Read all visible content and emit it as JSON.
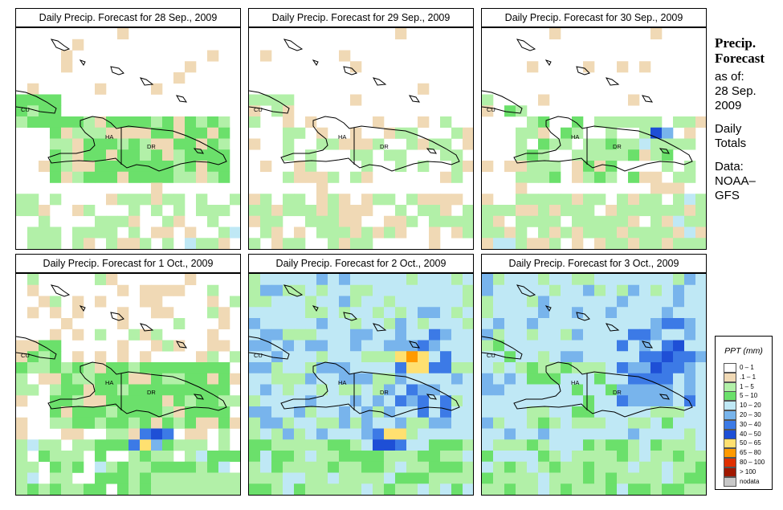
{
  "panels": [
    {
      "title": "Daily Precip. Forecast for  28 Sep., 2009",
      "day": "28 Sep., 2009"
    },
    {
      "title": "Daily Precip. Forecast for  29 Sep., 2009",
      "day": "29 Sep., 2009"
    },
    {
      "title": "Daily Precip. Forecast for  30 Sep., 2009",
      "day": "30 Sep., 2009"
    },
    {
      "title": "Daily Precip. Forecast for  1 Oct., 2009",
      "day": "1 Oct., 2009"
    },
    {
      "title": "Daily Precip. Forecast for  2 Oct., 2009",
      "day": "2 Oct., 2009"
    },
    {
      "title": "Daily Precip. Forecast for  3 Oct., 2009",
      "day": "3 Oct., 2009"
    }
  ],
  "map_labels": {
    "cuba": "CU",
    "haiti": "HA",
    "dominican_republic": "DR"
  },
  "sidebar": {
    "heading_line1": "Precip.",
    "heading_line2": "Forecast",
    "asof_label": "as of:",
    "date_line1": "28 Sep.",
    "date_line2": "2009",
    "totals_line1": "Daily",
    "totals_line2": "Totals",
    "data_line1": "Data:",
    "data_line2": "NOAA–",
    "data_line3": "GFS"
  },
  "legend": {
    "title": "PPT (mm)",
    "items": [
      {
        "label": "0 – 1",
        "color": "#ffffff"
      },
      {
        "label": ".1 – 1",
        "color": "#f0d9b5"
      },
      {
        "label": "1 – 5",
        "color": "#b2f0a8"
      },
      {
        "label": "5 – 10",
        "color": "#6be06b"
      },
      {
        "label": "10 – 20",
        "color": "#bfe8f5"
      },
      {
        "label": "20 – 30",
        "color": "#78b4ec"
      },
      {
        "label": "30 – 40",
        "color": "#3c7ae6"
      },
      {
        "label": "40 – 50",
        "color": "#1e4fd6"
      },
      {
        "label": "50 – 65",
        "color": "#ffe070"
      },
      {
        "label": "65 – 80",
        "color": "#ff9a00"
      },
      {
        "label": "80 – 100",
        "color": "#e03000"
      },
      {
        "label": "> 100",
        "color": "#a01800"
      },
      {
        "label": "nodata",
        "color": "#c8c8c8"
      }
    ]
  }
}
